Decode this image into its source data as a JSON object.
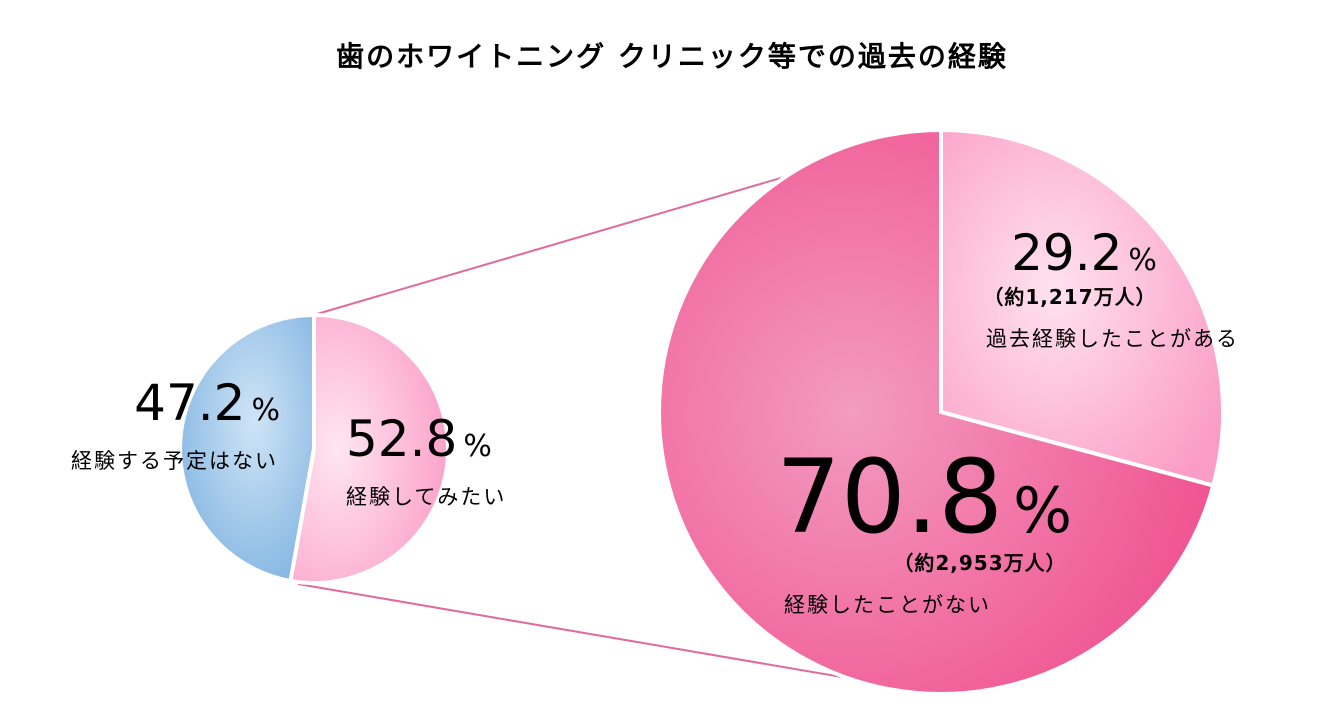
{
  "chart_data": {
    "type": "pie",
    "title": "歯のホワイトニング クリニック等での過去の経験",
    "charts": [
      {
        "kind": "pie",
        "slices": [
          {
            "label": "経験する予定はない",
            "value": 47.2,
            "value_text": "47.2",
            "unit": "%",
            "color": "#8dbde6"
          },
          {
            "label": "経験してみたい",
            "value": 52.8,
            "value_text": "52.8",
            "unit": "%",
            "color": "#fca6cc"
          }
        ]
      },
      {
        "kind": "pie-of-pie",
        "slices": [
          {
            "label": "過去経験したことがある",
            "value": 29.2,
            "value_text": "29.2",
            "unit": "%",
            "count": "（約1,217万人）",
            "color": "#fdb4d4"
          },
          {
            "label": "経験したことがない",
            "value": 70.8,
            "value_text": "70.8",
            "unit": "%",
            "count": "（約2,953万人）",
            "color": "#f06aa0"
          }
        ]
      }
    ],
    "connector_color": "#e06a9e",
    "legend": "none",
    "grid": false
  }
}
